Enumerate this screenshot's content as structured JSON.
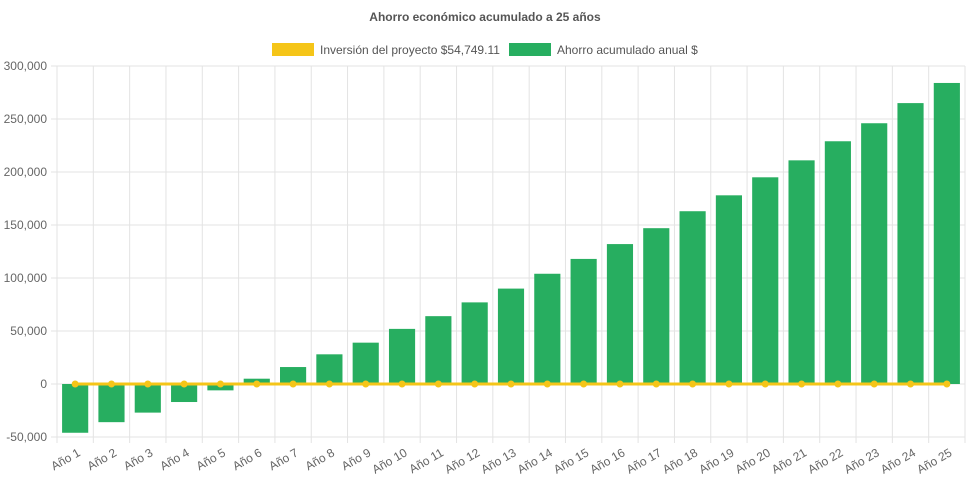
{
  "chart_data": {
    "type": "bar",
    "title": "Ahorro económico acumulado a 25 años",
    "categories": [
      "Año 1",
      "Año 2",
      "Año 3",
      "Año 4",
      "Año 5",
      "Año 6",
      "Año 7",
      "Año 8",
      "Año 9",
      "Año 10",
      "Año 11",
      "Año 12",
      "Año 13",
      "Año 14",
      "Año 15",
      "Año 16",
      "Año 17",
      "Año 18",
      "Año 19",
      "Año 20",
      "Año 21",
      "Año 22",
      "Año 23",
      "Año 24",
      "Año 25"
    ],
    "series": [
      {
        "name": "Inversión del proyecto $54,749.11",
        "type": "line",
        "color": "#f5c518",
        "values": [
          0,
          0,
          0,
          0,
          0,
          0,
          0,
          0,
          0,
          0,
          0,
          0,
          0,
          0,
          0,
          0,
          0,
          0,
          0,
          0,
          0,
          0,
          0,
          0,
          0
        ]
      },
      {
        "name": "Ahorro acumulado anual $",
        "type": "bar",
        "color": "#27ae60",
        "values": [
          -46000,
          -36000,
          -27000,
          -17000,
          -6000,
          5000,
          16000,
          28000,
          39000,
          52000,
          64000,
          77000,
          90000,
          104000,
          118000,
          132000,
          147000,
          163000,
          178000,
          195000,
          211000,
          229000,
          246000,
          265000,
          284000
        ]
      }
    ],
    "yticks": [
      "300,000",
      "250,000",
      "200,000",
      "150,000",
      "100,000",
      "50,000",
      "0",
      "-50,000"
    ],
    "ylim": [
      -50000,
      300000
    ],
    "grid": true,
    "legend": "top-center"
  }
}
